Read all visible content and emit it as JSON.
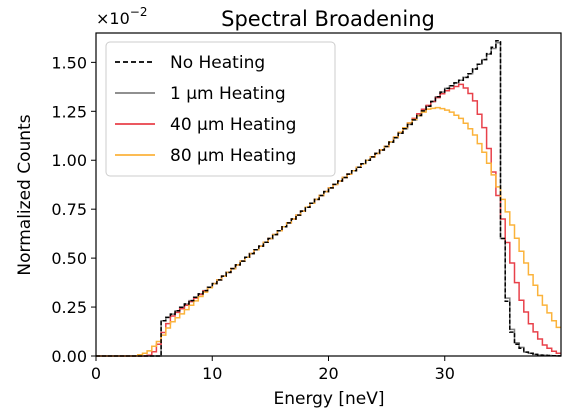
{
  "chart_data": {
    "type": "line",
    "title": "Spectral Broadening",
    "xlabel": "Energy [neV]",
    "ylabel": "Normalized Counts",
    "y_multiplier": "×10",
    "y_multiplier_exp": "−2",
    "xlim": [
      0,
      40
    ],
    "ylim": [
      0,
      1.65
    ],
    "x_ticks": [
      0,
      10,
      20,
      30
    ],
    "x_tick_labels": [
      "0",
      "10",
      "20",
      "30"
    ],
    "y_ticks": [
      0,
      0.25,
      0.5,
      0.75,
      1.0,
      1.25,
      1.5
    ],
    "y_tick_labels": [
      "0.00",
      "0.25",
      "0.50",
      "0.75",
      "1.00",
      "1.25",
      "1.50"
    ],
    "grid": false,
    "legend_position": "top-left",
    "step_width": 0.4,
    "series": [
      {
        "name": "No Heating",
        "color": "#000000",
        "style": "dashed",
        "points": [
          [
            0,
            0
          ],
          [
            5.8,
            0
          ],
          [
            5.8,
            0.18
          ],
          [
            10,
            0.36
          ],
          [
            15,
            0.6
          ],
          [
            20,
            0.85
          ],
          [
            25,
            1.07
          ],
          [
            28,
            1.24
          ],
          [
            30,
            1.36
          ],
          [
            32,
            1.43
          ],
          [
            33.5,
            1.52
          ],
          [
            34.6,
            1.61
          ],
          [
            35,
            0.6
          ],
          [
            35.5,
            0.2
          ],
          [
            36,
            0.07
          ],
          [
            37,
            0.02
          ],
          [
            38,
            0.005
          ],
          [
            40,
            0
          ]
        ]
      },
      {
        "name": "1 μm Heating",
        "color": "#808080",
        "style": "solid",
        "points": [
          [
            0,
            0
          ],
          [
            5.8,
            0
          ],
          [
            5.8,
            0.18
          ],
          [
            10,
            0.36
          ],
          [
            15,
            0.6
          ],
          [
            20,
            0.85
          ],
          [
            25,
            1.07
          ],
          [
            28,
            1.24
          ],
          [
            30,
            1.36
          ],
          [
            32,
            1.43
          ],
          [
            33.5,
            1.52
          ],
          [
            34.6,
            1.6
          ],
          [
            35,
            0.6
          ],
          [
            35.5,
            0.22
          ],
          [
            36,
            0.08
          ],
          [
            37,
            0.02
          ],
          [
            38,
            0.005
          ],
          [
            40,
            0
          ]
        ]
      },
      {
        "name": "40 μm Heating",
        "color": "#e8414a",
        "style": "solid",
        "points": [
          [
            0,
            0
          ],
          [
            4.5,
            0
          ],
          [
            5.2,
            0.03
          ],
          [
            5.8,
            0.12
          ],
          [
            6.5,
            0.2
          ],
          [
            10,
            0.36
          ],
          [
            15,
            0.6
          ],
          [
            20,
            0.85
          ],
          [
            25,
            1.07
          ],
          [
            28,
            1.25
          ],
          [
            30,
            1.35
          ],
          [
            31.5,
            1.39
          ],
          [
            32.5,
            1.32
          ],
          [
            33.5,
            1.15
          ],
          [
            34.5,
            0.85
          ],
          [
            35.5,
            0.55
          ],
          [
            36.5,
            0.3
          ],
          [
            37.5,
            0.15
          ],
          [
            38.5,
            0.06
          ],
          [
            39.5,
            0.02
          ],
          [
            40,
            0.01
          ]
        ]
      },
      {
        "name": "80 μm Heating",
        "color": "#fbb33b",
        "style": "solid",
        "points": [
          [
            0,
            0
          ],
          [
            3.5,
            0
          ],
          [
            4.5,
            0.02
          ],
          [
            5.5,
            0.08
          ],
          [
            6.5,
            0.17
          ],
          [
            7.5,
            0.22
          ],
          [
            10,
            0.36
          ],
          [
            15,
            0.6
          ],
          [
            20,
            0.85
          ],
          [
            25,
            1.07
          ],
          [
            27,
            1.19
          ],
          [
            28.5,
            1.26
          ],
          [
            29.5,
            1.27
          ],
          [
            30.5,
            1.25
          ],
          [
            31.5,
            1.21
          ],
          [
            32.5,
            1.14
          ],
          [
            33.5,
            1.03
          ],
          [
            34.5,
            0.88
          ],
          [
            35.5,
            0.72
          ],
          [
            36.5,
            0.55
          ],
          [
            37.5,
            0.4
          ],
          [
            38.5,
            0.27
          ],
          [
            39.5,
            0.17
          ],
          [
            40,
            0.13
          ]
        ]
      }
    ]
  }
}
